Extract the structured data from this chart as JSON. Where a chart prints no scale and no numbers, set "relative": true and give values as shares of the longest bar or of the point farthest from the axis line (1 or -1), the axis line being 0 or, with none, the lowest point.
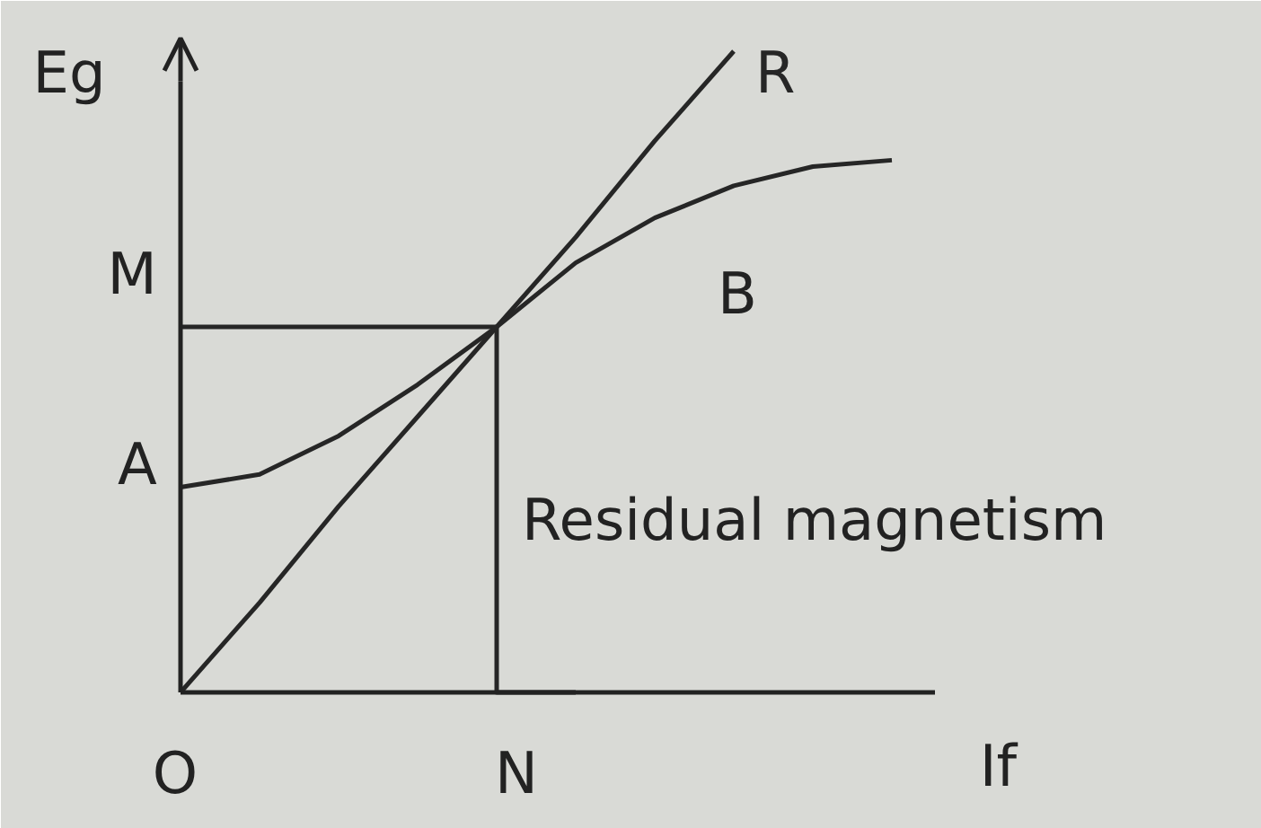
{
  "chart_data": {
    "type": "line",
    "relative": true,
    "xlabel": "If",
    "ylabel": "Eg",
    "categories": [
      null,
      null,
      null,
      null,
      null,
      null,
      null,
      null,
      null,
      null
    ],
    "series": [
      {
        "name": "R",
        "color": "#262626",
        "values": [
          0,
          0.14,
          0.29,
          0.43,
          0.57,
          0.71,
          0.86,
          1.0,
          null,
          null
        ]
      },
      {
        "color": "#262626",
        "values": [
          0.32,
          0.34,
          0.4,
          0.48,
          0.57,
          0.67,
          0.74,
          0.79,
          0.82,
          0.83
        ]
      },
      {
        "type": "step",
        "color": "#262626",
        "values": [
          0.57,
          0.57,
          0.57,
          0.57,
          0.57,
          0,
          null,
          null,
          null,
          null
        ]
      }
    ],
    "annotations": [
      "M",
      "A",
      "O",
      "N",
      "B",
      "Residual magnetism"
    ],
    "legend": false,
    "marker": "none",
    "line_style": "solid"
  }
}
